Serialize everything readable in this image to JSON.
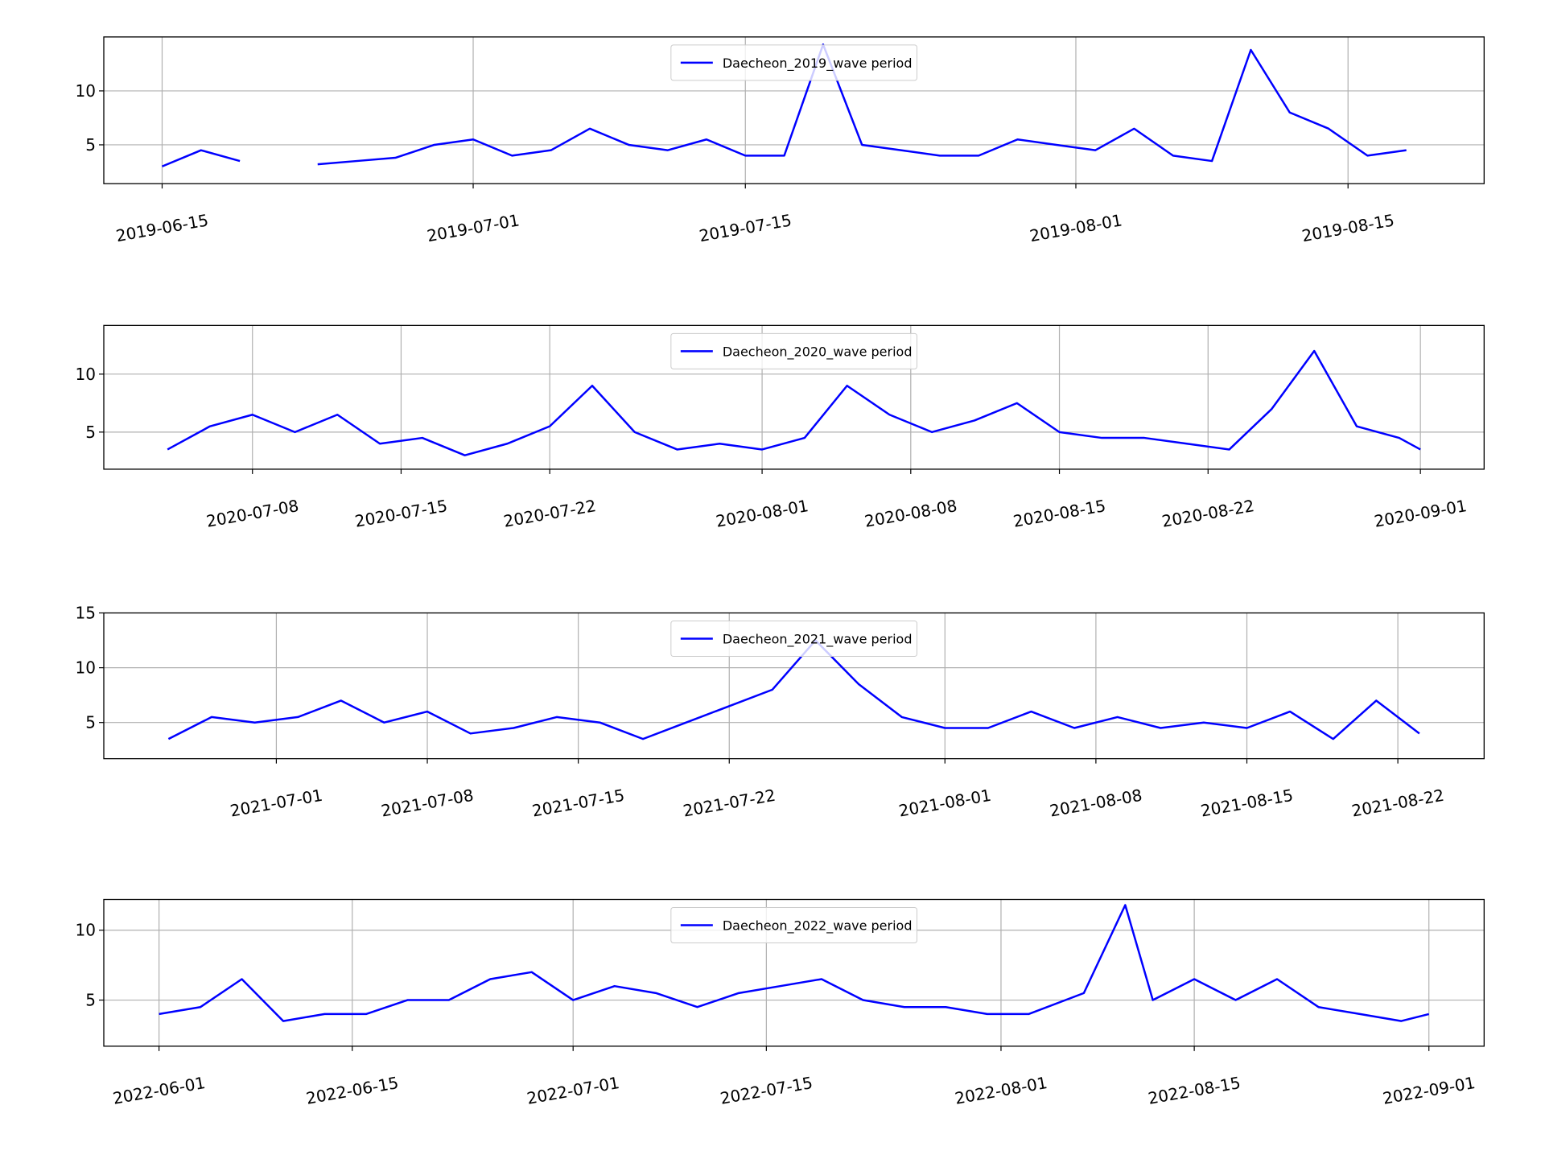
{
  "chart_data": [
    {
      "type": "line",
      "legend": "upper center",
      "grid": true,
      "x": [
        "2019-06-15",
        "2019-06-17",
        "2019-06-19",
        "2019-06-21",
        "2019-06-23",
        "2019-06-25",
        "2019-06-27",
        "2019-06-29",
        "2019-07-01",
        "2019-07-03",
        "2019-07-05",
        "2019-07-07",
        "2019-07-09",
        "2019-07-11",
        "2019-07-13",
        "2019-07-15",
        "2019-07-17",
        "2019-07-19",
        "2019-07-21",
        "2019-07-23",
        "2019-07-25",
        "2019-07-27",
        "2019-07-29",
        "2019-07-31",
        "2019-08-02",
        "2019-08-04",
        "2019-08-06",
        "2019-08-08",
        "2019-08-10",
        "2019-08-12",
        "2019-08-14",
        "2019-08-16",
        "2019-08-18"
      ],
      "series": [
        {
          "name": "Daecheon_2019_wave period",
          "color": "#0000ff",
          "values": [
            3.0,
            4.5,
            3.5,
            null,
            3.2,
            3.5,
            3.8,
            5.0,
            5.5,
            4.0,
            4.5,
            6.5,
            5.0,
            4.5,
            5.5,
            4.0,
            4.0,
            14.3,
            5.0,
            4.5,
            4.0,
            4.0,
            5.5,
            5.0,
            4.5,
            6.5,
            4.0,
            3.5,
            13.8,
            8.0,
            6.5,
            4.0,
            4.5
          ]
        }
      ],
      "xlim": [
        "2019-06-12",
        "2019-08-22"
      ],
      "xticks": [
        "2019-06-15",
        "2019-07-01",
        "2019-07-15",
        "2019-08-01",
        "2019-08-15"
      ],
      "ylim": [
        1.4,
        15.0
      ],
      "yticks": [
        5,
        10
      ]
    },
    {
      "type": "line",
      "legend": "upper center",
      "grid": true,
      "x": [
        "2020-07-04",
        "2020-07-06",
        "2020-07-08",
        "2020-07-10",
        "2020-07-12",
        "2020-07-14",
        "2020-07-16",
        "2020-07-18",
        "2020-07-20",
        "2020-07-22",
        "2020-07-24",
        "2020-07-26",
        "2020-07-28",
        "2020-07-30",
        "2020-08-01",
        "2020-08-03",
        "2020-08-05",
        "2020-08-07",
        "2020-08-09",
        "2020-08-11",
        "2020-08-13",
        "2020-08-15",
        "2020-08-17",
        "2020-08-19",
        "2020-08-21",
        "2020-08-23",
        "2020-08-25",
        "2020-08-27",
        "2020-08-29",
        "2020-08-31",
        "2020-09-01"
      ],
      "series": [
        {
          "name": "Daecheon_2020_wave period",
          "color": "#0000ff",
          "values": [
            3.5,
            5.5,
            6.5,
            5.0,
            6.5,
            4.0,
            4.5,
            3.0,
            4.0,
            5.5,
            9.0,
            5.0,
            3.5,
            4.0,
            3.5,
            4.5,
            9.0,
            6.5,
            5.0,
            6.0,
            7.5,
            5.0,
            4.5,
            4.5,
            4.0,
            3.5,
            7.0,
            12.0,
            5.5,
            4.5,
            3.5
          ]
        }
      ],
      "xlim": [
        "2020-07-01",
        "2020-09-04"
      ],
      "xticks": [
        "2020-07-08",
        "2020-07-15",
        "2020-07-22",
        "2020-08-01",
        "2020-08-08",
        "2020-08-15",
        "2020-08-22",
        "2020-09-01"
      ],
      "ylim": [
        1.8,
        14.2
      ],
      "yticks": [
        5,
        10
      ]
    },
    {
      "type": "line",
      "legend": "upper center",
      "grid": true,
      "x": [
        "2021-06-26",
        "2021-06-28",
        "2021-06-30",
        "2021-07-02",
        "2021-07-04",
        "2021-07-06",
        "2021-07-08",
        "2021-07-10",
        "2021-07-12",
        "2021-07-14",
        "2021-07-16",
        "2021-07-18",
        "2021-07-20",
        "2021-07-22",
        "2021-07-24",
        "2021-07-26",
        "2021-07-28",
        "2021-07-30",
        "2021-08-01",
        "2021-08-03",
        "2021-08-05",
        "2021-08-07",
        "2021-08-09",
        "2021-08-11",
        "2021-08-13",
        "2021-08-15",
        "2021-08-17",
        "2021-08-19",
        "2021-08-21",
        "2021-08-23"
      ],
      "series": [
        {
          "name": "Daecheon_2021_wave period",
          "color": "#0000ff",
          "values": [
            3.5,
            5.5,
            5.0,
            5.5,
            7.0,
            5.0,
            6.0,
            4.0,
            4.5,
            5.5,
            5.0,
            3.5,
            5.0,
            6.5,
            8.0,
            12.5,
            8.5,
            5.5,
            4.5,
            4.5,
            6.0,
            4.5,
            5.5,
            4.5,
            5.0,
            4.5,
            6.0,
            3.5,
            7.0,
            4.0
          ]
        }
      ],
      "xlim": [
        "2021-06-23",
        "2021-08-26"
      ],
      "xticks": [
        "2021-07-01",
        "2021-07-08",
        "2021-07-15",
        "2021-07-22",
        "2021-08-01",
        "2021-08-08",
        "2021-08-15",
        "2021-08-22"
      ],
      "ylim": [
        1.7,
        15.0
      ],
      "yticks": [
        5,
        10,
        15
      ]
    },
    {
      "type": "line",
      "legend": "upper center",
      "grid": true,
      "x": [
        "2022-06-01",
        "2022-06-04",
        "2022-06-07",
        "2022-06-10",
        "2022-06-13",
        "2022-06-16",
        "2022-06-19",
        "2022-06-22",
        "2022-06-25",
        "2022-06-28",
        "2022-07-01",
        "2022-07-04",
        "2022-07-07",
        "2022-07-10",
        "2022-07-13",
        "2022-07-16",
        "2022-07-19",
        "2022-07-22",
        "2022-07-25",
        "2022-07-28",
        "2022-07-31",
        "2022-08-03",
        "2022-08-07",
        "2022-08-10",
        "2022-08-12",
        "2022-08-15",
        "2022-08-18",
        "2022-08-21",
        "2022-08-24",
        "2022-08-27",
        "2022-08-30",
        "2022-09-01"
      ],
      "series": [
        {
          "name": "Daecheon_2022_wave period",
          "color": "#0000ff",
          "values": [
            4.0,
            4.5,
            6.5,
            3.5,
            4.0,
            4.0,
            5.0,
            5.0,
            6.5,
            7.0,
            5.0,
            6.0,
            5.5,
            4.5,
            5.5,
            6.0,
            6.5,
            5.0,
            4.5,
            4.5,
            4.0,
            4.0,
            5.5,
            11.8,
            5.0,
            6.5,
            5.0,
            6.5,
            4.5,
            4.0,
            3.5,
            4.0
          ]
        }
      ],
      "xlim": [
        "2022-05-28",
        "2022-09-05"
      ],
      "xticks": [
        "2022-06-01",
        "2022-06-15",
        "2022-07-01",
        "2022-07-15",
        "2022-08-01",
        "2022-08-15",
        "2022-09-01"
      ],
      "ylim": [
        1.7,
        12.2
      ],
      "yticks": [
        5,
        10
      ]
    }
  ]
}
